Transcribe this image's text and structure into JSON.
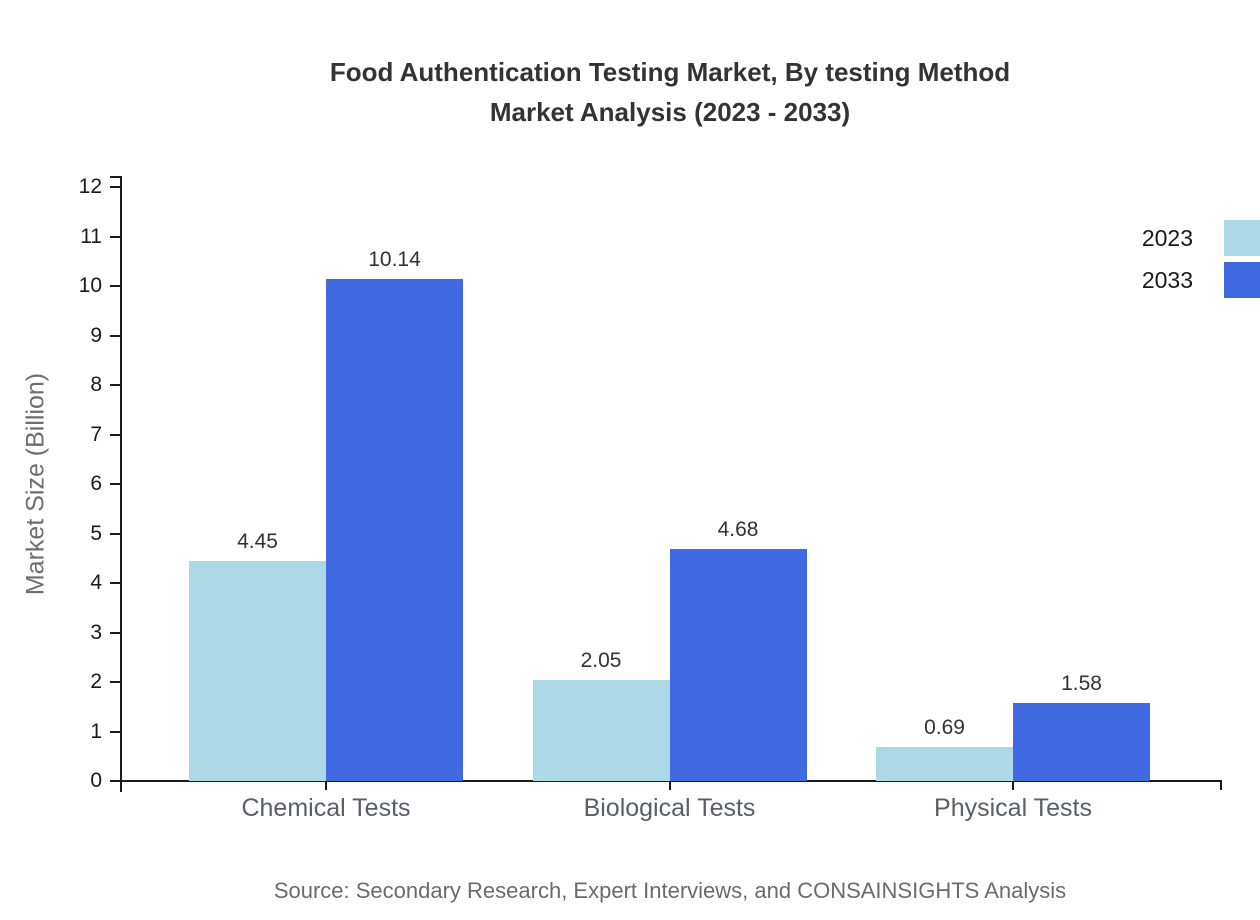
{
  "title_line1": "Food Authentication Testing Market, By testing Method",
  "title_line2": "Market Analysis (2023 - 2033)",
  "source_note": "Source: Secondary Research, Expert Interviews, and CONSAINSIGHTS Analysis",
  "colors": {
    "series_2023": "#ADD8E6",
    "series_2033": "#4169E1",
    "axis": "#1a1a1a",
    "title_text": "#333333",
    "muted_text": "#6e6e6e"
  },
  "chart_data": {
    "type": "bar",
    "title": "Food Authentication Testing Market, By testing Method Market Analysis (2023 - 2033)",
    "categories": [
      "Chemical Tests",
      "Biological Tests",
      "Physical Tests"
    ],
    "series": [
      {
        "name": "2023",
        "color": "#ADD8E6",
        "values": [
          4.45,
          2.05,
          0.69
        ]
      },
      {
        "name": "2033",
        "color": "#4169E1",
        "values": [
          10.14,
          4.68,
          1.58
        ]
      }
    ],
    "value_labels": [
      [
        "4.45",
        "2.05",
        "0.69"
      ],
      [
        "10.14",
        "4.68",
        "1.58"
      ]
    ],
    "xlabel": "",
    "ylabel": "Market Size (Billion)",
    "ylim": [
      0,
      12
    ],
    "yticks": [
      0,
      1,
      2,
      3,
      4,
      5,
      6,
      7,
      8,
      9,
      10,
      11,
      12
    ],
    "grid": false,
    "legend_position": "top-right"
  }
}
